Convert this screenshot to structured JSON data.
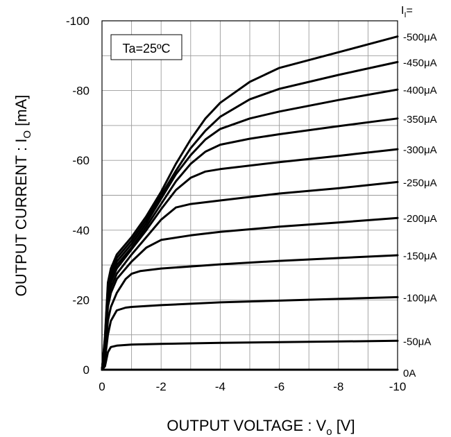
{
  "chart_data": {
    "type": "line",
    "xlabel": "OUTPUT VOLTAGE : V",
    "xlabel_sub": "o",
    "xlabel_unit": " [V]",
    "ylabel": "OUTPUT CURRENT : I",
    "ylabel_sub": "O",
    "ylabel_unit": " [mA]",
    "xlim": [
      0,
      -10
    ],
    "ylim": [
      0,
      -100
    ],
    "x_ticks": [
      {
        "value": 0,
        "label": "0"
      },
      {
        "value": -2,
        "label": "-2"
      },
      {
        "value": -4,
        "label": "-4"
      },
      {
        "value": -6,
        "label": "-6"
      },
      {
        "value": -8,
        "label": "-8"
      },
      {
        "value": -10,
        "label": "-10"
      }
    ],
    "y_ticks": [
      {
        "value": 0,
        "label": "0"
      },
      {
        "value": -20,
        "label": "-20"
      },
      {
        "value": -40,
        "label": "-40"
      },
      {
        "value": -60,
        "label": "-60"
      },
      {
        "value": -80,
        "label": "-80"
      },
      {
        "value": -100,
        "label": "-100"
      }
    ],
    "grid": true,
    "annotation": "Ta=25ºC",
    "series_header": "I",
    "series_header_sub": "I",
    "series_header_suffix": "=",
    "series": [
      {
        "name": "0A",
        "x": [
          0,
          -10
        ],
        "y": [
          0,
          0
        ]
      },
      {
        "name": "-50μA",
        "x": [
          0,
          -0.1,
          -0.2,
          -0.3,
          -0.5,
          -1,
          -2,
          -4,
          -6,
          -8,
          -10
        ],
        "y": [
          0,
          -1,
          -5,
          -6.5,
          -6.9,
          -7.2,
          -7.4,
          -7.7,
          -7.9,
          -8.1,
          -8.3
        ]
      },
      {
        "name": "-100μA",
        "x": [
          0,
          -0.1,
          -0.2,
          -0.3,
          -0.5,
          -0.8,
          -1,
          -2,
          -4,
          -6,
          -8,
          -10
        ],
        "y": [
          0,
          -3,
          -10,
          -14,
          -17,
          -17.8,
          -18,
          -18.5,
          -19.3,
          -19.8,
          -20.3,
          -20.8
        ]
      },
      {
        "name": "-150μA",
        "x": [
          0,
          -0.1,
          -0.2,
          -0.3,
          -0.5,
          -0.8,
          -1,
          -1.3,
          -2,
          -4,
          -6,
          -8,
          -10
        ],
        "y": [
          0,
          -5,
          -14,
          -18,
          -22,
          -26,
          -27.5,
          -28.3,
          -29,
          -30.2,
          -31.2,
          -32,
          -32.8
        ]
      },
      {
        "name": "-200μA",
        "x": [
          0,
          -0.1,
          -0.2,
          -0.3,
          -0.5,
          -1,
          -1.5,
          -2,
          -3,
          -4,
          -6,
          -8,
          -10
        ],
        "y": [
          0,
          -6,
          -18,
          -22,
          -26,
          -31,
          -35,
          -37.2,
          -38.5,
          -39.5,
          -41,
          -42.2,
          -43.5
        ]
      },
      {
        "name": "-250μA",
        "x": [
          0,
          -0.1,
          -0.2,
          -0.3,
          -0.5,
          -1,
          -1.5,
          -2,
          -2.5,
          -3,
          -4,
          -6,
          -8,
          -10
        ],
        "y": [
          0,
          -7,
          -20,
          -23.5,
          -27.5,
          -33,
          -38,
          -43,
          -46.5,
          -47.5,
          -48.5,
          -50.5,
          -52,
          -53.8
        ]
      },
      {
        "name": "-300μA",
        "x": [
          0,
          -0.1,
          -0.2,
          -0.3,
          -0.5,
          -1,
          -1.5,
          -2,
          -2.5,
          -3,
          -3.5,
          -4,
          -6,
          -8,
          -10
        ],
        "y": [
          0,
          -7.5,
          -21,
          -25,
          -29,
          -34.5,
          -40,
          -46,
          -51.5,
          -55,
          -56.8,
          -57.5,
          -59.5,
          -61.3,
          -63.2
        ]
      },
      {
        "name": "-350μA",
        "x": [
          0,
          -0.1,
          -0.2,
          -0.3,
          -0.5,
          -1,
          -1.5,
          -2,
          -2.5,
          -3,
          -3.5,
          -4,
          -5,
          -6,
          -8,
          -10
        ],
        "y": [
          0,
          -8,
          -22,
          -26,
          -30,
          -35,
          -41,
          -47.5,
          -54,
          -59,
          -62.5,
          -64.5,
          -66.2,
          -67.5,
          -69.8,
          -72
        ]
      },
      {
        "name": "-400μA",
        "x": [
          0,
          -0.1,
          -0.2,
          -0.3,
          -0.5,
          -1,
          -1.5,
          -2,
          -2.5,
          -3,
          -3.5,
          -4,
          -5,
          -6,
          -8,
          -10
        ],
        "y": [
          0,
          -8.5,
          -23,
          -27,
          -31,
          -36,
          -42,
          -49,
          -56,
          -61.5,
          -66,
          -69,
          -72,
          -74,
          -77.3,
          -80.3
        ]
      },
      {
        "name": "-450μA",
        "x": [
          0,
          -0.1,
          -0.2,
          -0.3,
          -0.5,
          -1,
          -1.5,
          -2,
          -2.5,
          -3,
          -3.5,
          -4,
          -5,
          -6,
          -8,
          -10
        ],
        "y": [
          0,
          -9,
          -24,
          -28,
          -32,
          -37,
          -43,
          -50,
          -57,
          -63.5,
          -68.5,
          -72.5,
          -77.5,
          -80.5,
          -84.5,
          -88.2
        ]
      },
      {
        "name": "-500μA",
        "x": [
          0,
          -0.1,
          -0.2,
          -0.3,
          -0.5,
          -1,
          -1.5,
          -2,
          -2.5,
          -3,
          -3.5,
          -4,
          -5,
          -6,
          -8,
          -10
        ],
        "y": [
          0,
          -9.5,
          -25,
          -29,
          -33,
          -38,
          -44,
          -51,
          -59,
          -66,
          -72,
          -76.5,
          -82.5,
          -86.5,
          -91,
          -95.5
        ]
      }
    ]
  }
}
